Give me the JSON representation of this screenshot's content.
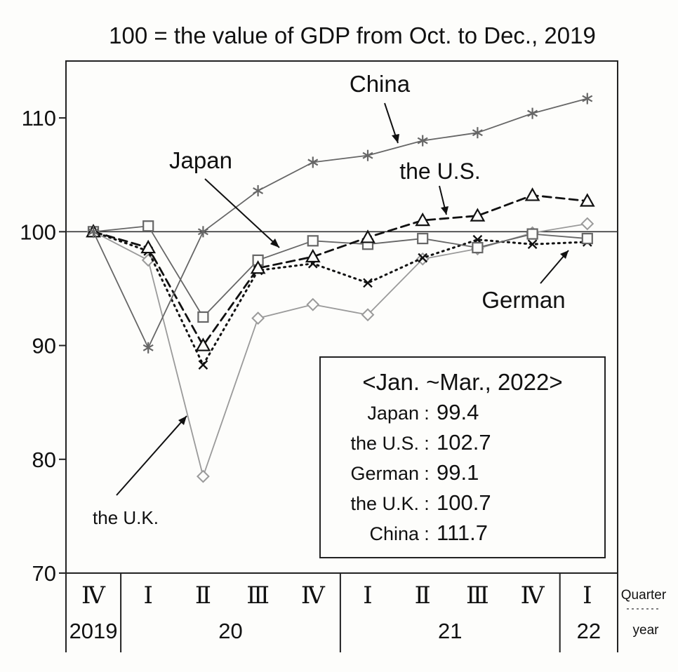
{
  "chart_data": {
    "type": "line",
    "title": "100 = the value of GDP from Oct. to Dec., 2019",
    "xlabel_quarter": "Quarter",
    "xlabel_year": "year",
    "ylim": [
      70,
      115
    ],
    "yticks": [
      70,
      80,
      90,
      100,
      110
    ],
    "grid": false,
    "reference_line": 100,
    "quarters": [
      "Ⅳ",
      "Ⅰ",
      "Ⅱ",
      "Ⅲ",
      "Ⅳ",
      "Ⅰ",
      "Ⅱ",
      "Ⅲ",
      "Ⅳ",
      "Ⅰ"
    ],
    "years": [
      {
        "label": "2019",
        "start": 0,
        "end": 0
      },
      {
        "label": "20",
        "start": 1,
        "end": 4
      },
      {
        "label": "21",
        "start": 5,
        "end": 8
      },
      {
        "label": "22",
        "start": 9,
        "end": 9
      }
    ],
    "series": [
      {
        "name": "China",
        "marker": "asterisk",
        "dash": "solid",
        "color": "#666666",
        "values": [
          100,
          89.8,
          100,
          103.6,
          106.1,
          106.7,
          108,
          108.7,
          110.4,
          111.7
        ]
      },
      {
        "name": "the U.S.",
        "marker": "triangle",
        "dash": "dashed",
        "color": "#111111",
        "values": [
          100,
          98.6,
          90,
          96.8,
          97.8,
          99.5,
          101,
          101.4,
          103.2,
          102.7
        ]
      },
      {
        "name": "Japan",
        "marker": "square",
        "dash": "solid",
        "color": "#666666",
        "values": [
          100,
          100.5,
          92.5,
          97.5,
          99.2,
          98.9,
          99.4,
          98.6,
          99.8,
          99.4
        ]
      },
      {
        "name": "German",
        "marker": "x",
        "dash": "dotted",
        "color": "#111111",
        "values": [
          100,
          98.3,
          88.3,
          96.6,
          97.2,
          95.5,
          97.7,
          99.3,
          98.9,
          99.1
        ]
      },
      {
        "name": "the U.K.",
        "marker": "diamond",
        "dash": "solid",
        "color": "#9a9a9a",
        "values": [
          100,
          97.5,
          78.5,
          92.4,
          93.6,
          92.7,
          97.6,
          98.5,
          99.9,
          100.7
        ]
      }
    ],
    "labels": {
      "china": "China",
      "us": "the U.S.",
      "japan": "Japan",
      "german": "German",
      "uk": "the U.K."
    },
    "summary_box": {
      "heading": "<Jan. ~Mar., 2022>",
      "rows": [
        {
          "name": "Japan",
          "value": "99.4"
        },
        {
          "name": "the U.S.",
          "value": "102.7"
        },
        {
          "name": "German",
          "value": "99.1"
        },
        {
          "name": "the U.K.",
          "value": "100.7"
        },
        {
          "name": "China",
          "value": "111.7"
        }
      ]
    }
  }
}
